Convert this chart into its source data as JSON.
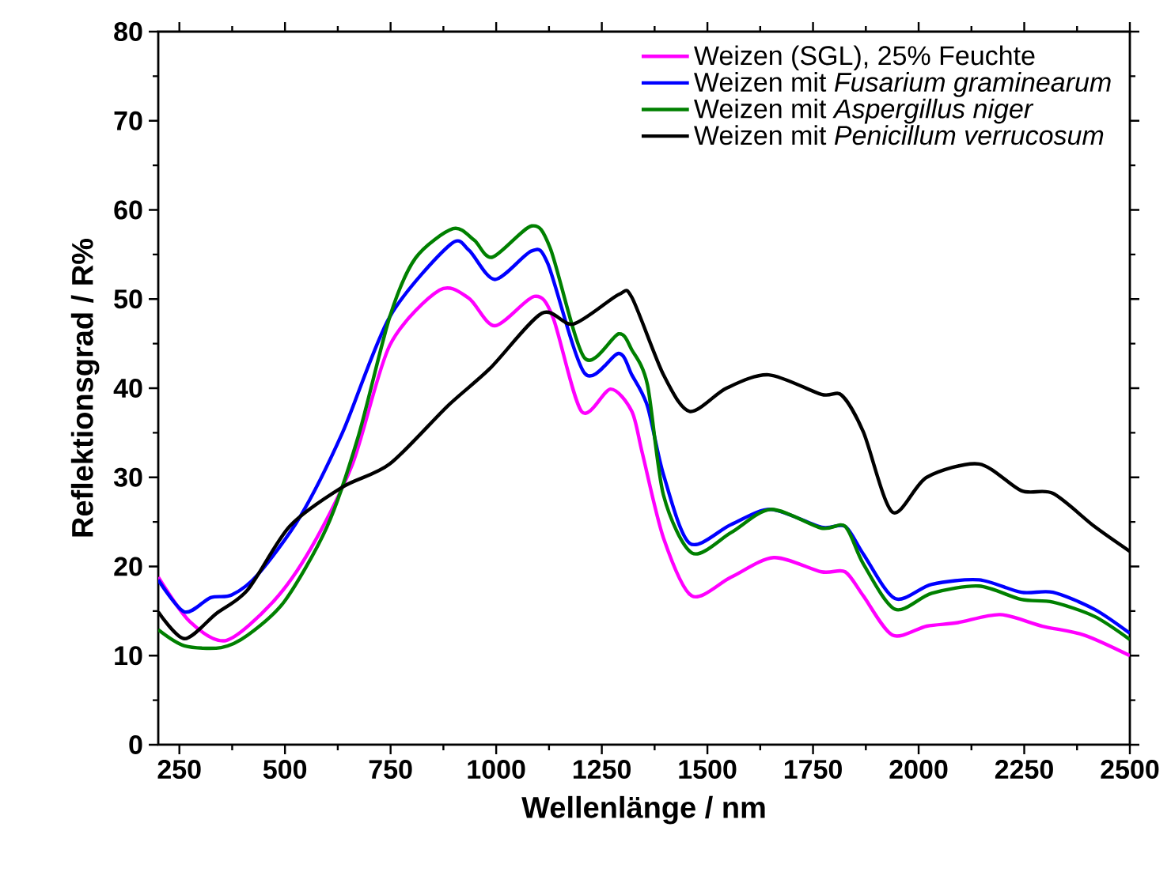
{
  "chart_data": {
    "type": "line",
    "xlabel": "Wellenlänge / nm",
    "ylabel": "Reflektionsgrad / R%",
    "xlim": [
      200,
      2500
    ],
    "ylim": [
      0,
      80
    ],
    "xticks": [
      250,
      500,
      750,
      1000,
      1250,
      1500,
      1750,
      2000,
      2250,
      2500
    ],
    "yticks": [
      0,
      10,
      20,
      30,
      40,
      50,
      60,
      70,
      80
    ],
    "legend": "top right",
    "series": [
      {
        "name": "Weizen (SGL), 25% Feuchte",
        "color": "#ff00ff",
        "x": [
          200,
          275,
          361,
          473,
          561,
          660,
          748,
          866,
          935,
          997,
          1090,
          1134,
          1202,
          1271,
          1321,
          1346,
          1396,
          1463,
          1556,
          1657,
          1770,
          1826,
          1869,
          1938,
          2019,
          2093,
          2193,
          2293,
          2392,
          2500
        ],
        "values": [
          18.8,
          13.8,
          11.7,
          16.1,
          22,
          31.5,
          44.8,
          51,
          50.1,
          47,
          50.3,
          48,
          37.4,
          39.9,
          37.4,
          32.7,
          23.2,
          16.7,
          18.8,
          21,
          19.4,
          19.4,
          16.7,
          12.3,
          13.3,
          13.7,
          14.6,
          13.3,
          12.3,
          10
        ]
      },
      {
        "name": "Weizen mit *Fusarium graminearum*",
        "color": "#0000ff",
        "x": [
          200,
          262,
          324,
          374,
          436,
          536,
          636,
          748,
          891,
          935,
          997,
          1084,
          1122,
          1209,
          1290,
          1321,
          1358,
          1396,
          1458,
          1556,
          1650,
          1770,
          1826,
          1869,
          1944,
          2031,
          2143,
          2243,
          2318,
          2416,
          2500
        ],
        "values": [
          18.5,
          14.9,
          16.5,
          16.8,
          19.1,
          25.6,
          35,
          48,
          56.1,
          55.5,
          52.2,
          55.4,
          54,
          41.7,
          43.9,
          41.5,
          38,
          30.3,
          22.6,
          24.7,
          26.4,
          24.4,
          24.5,
          21.4,
          16.4,
          18,
          18.5,
          17.1,
          17.1,
          15.2,
          12.5
        ]
      },
      {
        "name": "Weizen mit *Aspergillus niger*",
        "color": "#008000",
        "x": [
          200,
          262,
          349,
          412,
          499,
          599,
          673,
          748,
          809,
          898,
          948,
          991,
          1084,
          1128,
          1209,
          1290,
          1321,
          1358,
          1396,
          1464,
          1556,
          1650,
          1770,
          1826,
          1869,
          1944,
          2031,
          2143,
          2243,
          2318,
          2416,
          2500
        ],
        "values": [
          12.9,
          11.1,
          10.9,
          12.3,
          16.1,
          24.4,
          34.5,
          48,
          54.6,
          57.9,
          56.6,
          54.7,
          58.2,
          55.7,
          43.4,
          46.1,
          44.3,
          40.4,
          28,
          21.5,
          23.8,
          26.4,
          24.3,
          24.5,
          20.3,
          15.2,
          17,
          17.8,
          16.3,
          16,
          14.4,
          11.8
        ]
      },
      {
        "name": "Weizen mit *Penicillum verrucosum*",
        "color": "#000000",
        "x": [
          200,
          262,
          337,
          412,
          511,
          636,
          748,
          885,
          985,
          1108,
          1183,
          1290,
          1321,
          1396,
          1458,
          1545,
          1645,
          1770,
          1818,
          1869,
          1938,
          2019,
          2143,
          2243,
          2318,
          2416,
          2500
        ],
        "values": [
          14.9,
          11.9,
          14.7,
          17.4,
          24.5,
          28.9,
          31.5,
          38,
          42.2,
          48.4,
          47.2,
          50.5,
          50.2,
          41.5,
          37.4,
          40,
          41.5,
          39.3,
          39.2,
          35.1,
          26.1,
          30,
          31.5,
          28.5,
          28.2,
          24.5,
          21.7
        ]
      }
    ]
  }
}
